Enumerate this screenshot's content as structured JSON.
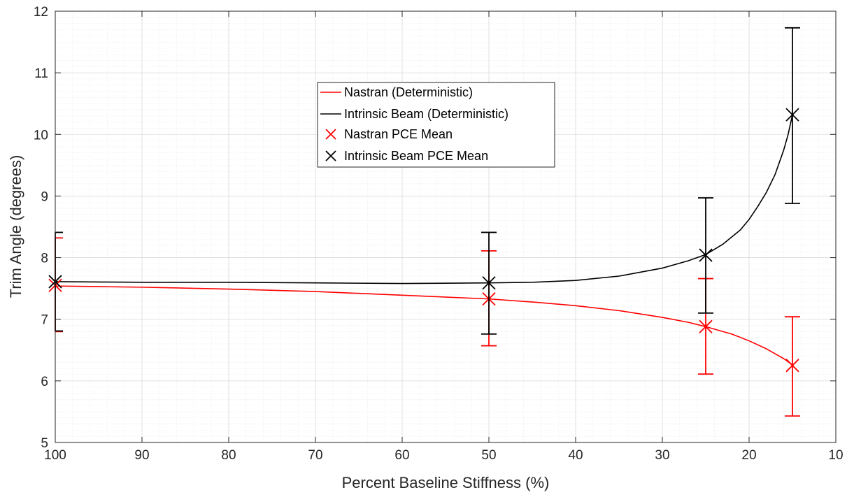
{
  "chart_data": {
    "type": "line",
    "xlabel": "Percent Baseline Stiffness (%)",
    "ylabel": "Trim Angle (degrees)",
    "xlim": [
      100,
      10
    ],
    "x_reversed": true,
    "ylim": [
      5,
      12
    ],
    "xticks": [
      100,
      90,
      80,
      70,
      60,
      50,
      40,
      30,
      20,
      10
    ],
    "yticks": [
      5,
      6,
      7,
      8,
      9,
      10,
      11,
      12
    ],
    "grid": true,
    "minor_grid": true,
    "legend_position": "upper-center",
    "colors": {
      "nastran": "#ff0000",
      "intrinsic": "#000000"
    },
    "series": [
      {
        "name": "Nastran (Deterministic)",
        "kind": "line",
        "color": "#ff0000",
        "x": [
          100,
          90,
          80,
          70,
          60,
          50,
          45,
          40,
          35,
          30,
          27,
          25,
          22,
          20,
          18,
          16,
          15
        ],
        "y": [
          7.54,
          7.52,
          7.49,
          7.45,
          7.39,
          7.33,
          7.28,
          7.22,
          7.14,
          7.03,
          6.95,
          6.88,
          6.76,
          6.65,
          6.52,
          6.36,
          6.26
        ]
      },
      {
        "name": "Intrinsic Beam (Deterministic)",
        "kind": "line",
        "color": "#000000",
        "x": [
          100,
          90,
          80,
          70,
          60,
          50,
          45,
          40,
          35,
          30,
          27,
          25,
          23,
          21,
          20,
          19,
          18,
          17,
          16,
          15.5,
          15
        ],
        "y": [
          7.61,
          7.6,
          7.6,
          7.59,
          7.58,
          7.59,
          7.6,
          7.63,
          7.7,
          7.83,
          7.95,
          8.05,
          8.22,
          8.45,
          8.62,
          8.83,
          9.06,
          9.35,
          9.75,
          10.0,
          10.32
        ]
      },
      {
        "name": "Nastran PCE Mean",
        "kind": "markers",
        "marker": "x",
        "color": "#ff0000",
        "x": [
          100,
          50,
          25,
          15
        ],
        "y": [
          7.55,
          7.33,
          6.88,
          6.25
        ],
        "err_low": [
          6.8,
          6.57,
          6.11,
          5.43
        ],
        "err_high": [
          8.32,
          8.11,
          7.66,
          7.04
        ]
      },
      {
        "name": "Intrinsic Beam PCE Mean",
        "kind": "markers",
        "marker": "x",
        "color": "#000000",
        "x": [
          100,
          50,
          25,
          15
        ],
        "y": [
          7.61,
          7.59,
          8.04,
          10.32
        ],
        "err_low": [
          6.81,
          6.76,
          7.1,
          8.88
        ],
        "err_high": [
          8.41,
          8.41,
          8.97,
          11.73
        ]
      }
    ]
  }
}
